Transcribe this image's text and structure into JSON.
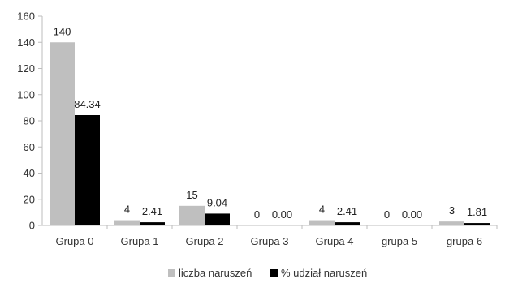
{
  "chart_data": {
    "type": "bar",
    "categories": [
      "Grupa 0",
      "Grupa 1",
      "Grupa 2",
      "Grupa 3",
      "Grupa 4",
      "grupa 5",
      "grupa 6"
    ],
    "series": [
      {
        "name": "liczba naruszeń",
        "values": [
          140,
          4,
          15,
          0,
          4,
          0,
          3
        ],
        "labels": [
          "140",
          "4",
          "15",
          "0",
          "4",
          "0",
          "3"
        ],
        "color": "#bfbfbf"
      },
      {
        "name": "% udział naruszeń",
        "values": [
          84.34,
          2.41,
          9.04,
          0.0,
          2.41,
          0.0,
          1.81
        ],
        "labels": [
          "84.34",
          "2.41",
          "9.04",
          "0.00",
          "2.41",
          "0.00",
          "1.81"
        ],
        "color": "#000000"
      }
    ],
    "ylim": [
      0,
      160
    ],
    "yticks": [
      "0",
      "20",
      "40",
      "60",
      "80",
      "100",
      "120",
      "140",
      "160"
    ],
    "title": "",
    "xlabel": "",
    "ylabel": "",
    "grid": false,
    "legend": "bottom-center"
  }
}
